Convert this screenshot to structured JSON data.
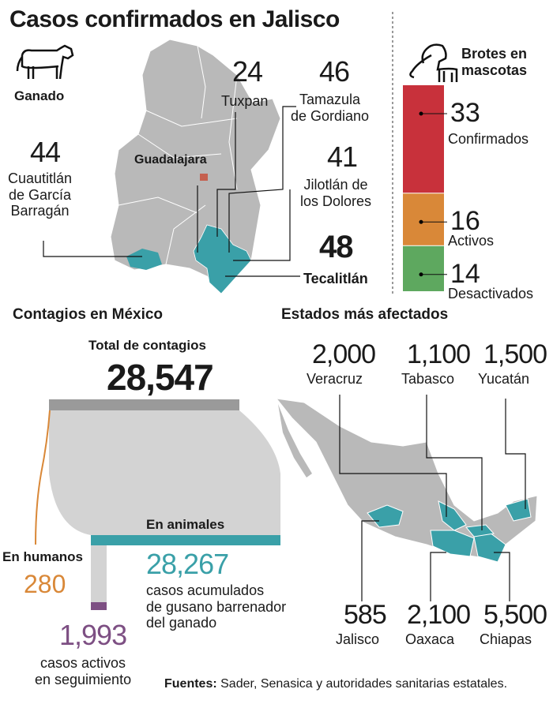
{
  "title": "Casos confirmados en Jalisco",
  "jalisco": {
    "label": "Ganado",
    "capital": "Guadalajara",
    "municipalities": [
      {
        "value": 24,
        "lines": [
          "Tuxpan"
        ]
      },
      {
        "value": 46,
        "lines": [
          "Tamazula",
          "de Gordiano"
        ]
      },
      {
        "value": 44,
        "lines": [
          "Cuautitlán",
          "de García",
          "Barragán"
        ]
      },
      {
        "value": 41,
        "lines": [
          "Jilotlán de",
          "los Dolores"
        ]
      },
      {
        "value": 48,
        "lines": [
          "Tecalitlán"
        ]
      }
    ]
  },
  "pets": {
    "title": [
      "Brotes en",
      "mascotas"
    ],
    "series": [
      {
        "name": "Confirmados",
        "value": 33,
        "color": "#c8313b"
      },
      {
        "name": "Activos",
        "value": 16,
        "color": "#d98838"
      },
      {
        "name": "Desactivados",
        "value": 14,
        "color": "#5ea85f"
      }
    ]
  },
  "mexico": {
    "title": "Contagios en México",
    "total_label": "Total de contagios",
    "total": "28,547",
    "humans_label": "En humanos",
    "humans": 280,
    "animals_label": "En animales",
    "animals": "28,267",
    "animals_desc": [
      "casos acumulados",
      "de gusano barrenador",
      "del ganado"
    ],
    "active": "1,993",
    "active_desc": [
      "casos activos",
      "en seguimiento"
    ]
  },
  "states": {
    "title": "Estados más afectados",
    "items": [
      {
        "value": "2,000",
        "name": "Veracruz"
      },
      {
        "value": "1,100",
        "name": "Tabasco"
      },
      {
        "value": "1,500",
        "name": "Yucatán"
      },
      {
        "value": 585,
        "name": "Jalisco"
      },
      {
        "value": "2,100",
        "name": "Oaxaca"
      },
      {
        "value": "5,500",
        "name": "Chiapas"
      }
    ]
  },
  "source": {
    "label": "Fuentes:",
    "text": "Sader, Senasica y autoridades sanitarias estatales."
  }
}
